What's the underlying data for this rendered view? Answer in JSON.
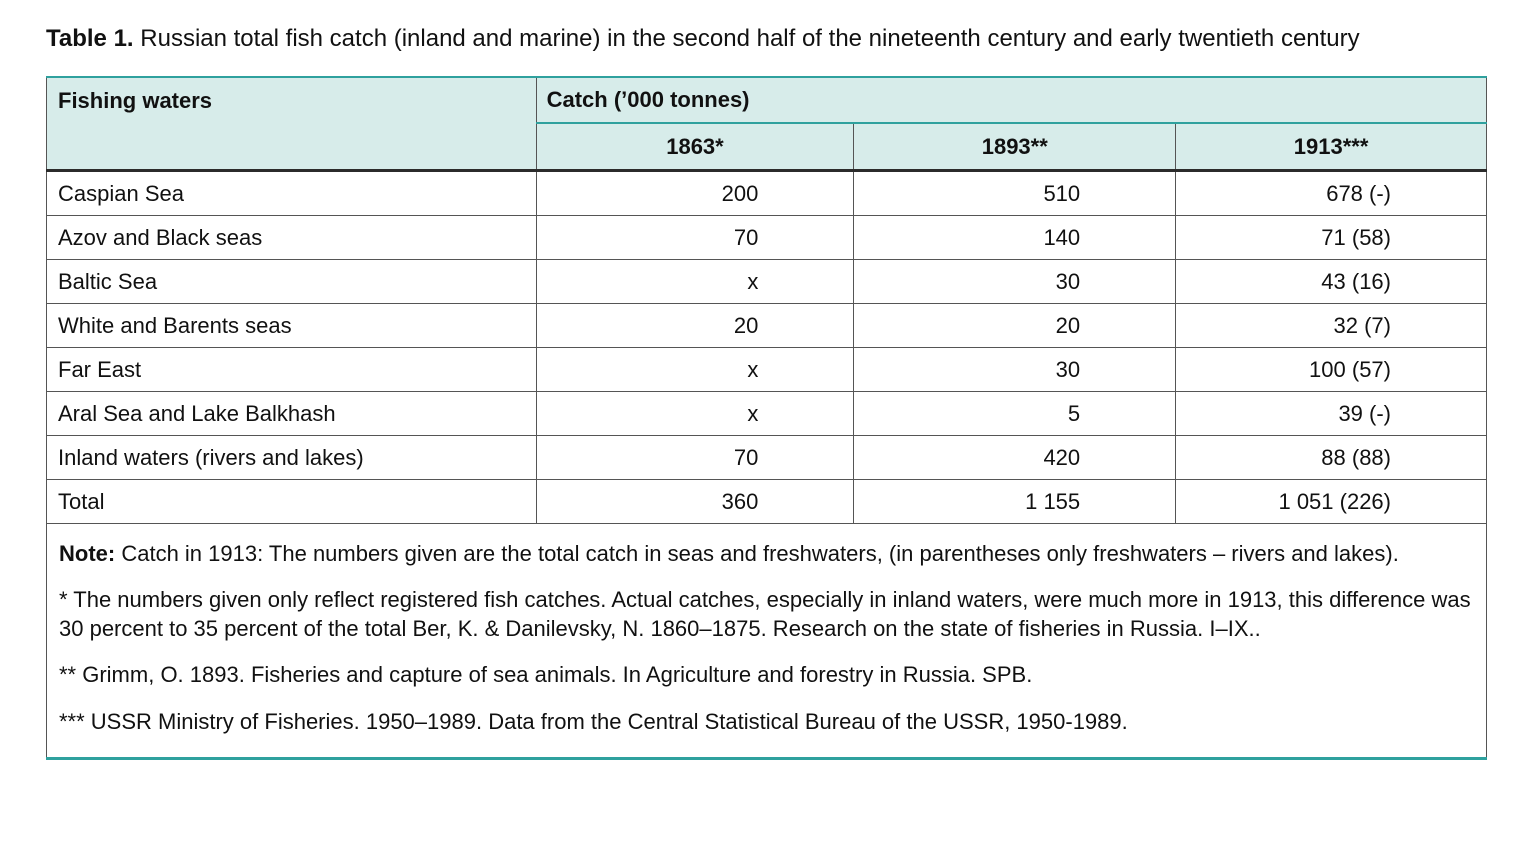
{
  "caption": {
    "label": "Table 1.",
    "text": " Russian total fish catch (inland and marine) in the second half of the nineteenth century and early twentieth century"
  },
  "table": {
    "col_header": "Fishing waters",
    "group_header": "Catch (’000 tonnes)",
    "year_headers": [
      "1863*",
      "1893**",
      "1913***"
    ],
    "rows": [
      {
        "label": "Caspian Sea",
        "values": [
          "200",
          "510",
          "678 (-)"
        ]
      },
      {
        "label": "Azov and Black seas",
        "values": [
          "70",
          "140",
          "71 (58)"
        ]
      },
      {
        "label": "Baltic Sea",
        "values": [
          "x",
          "30",
          "43 (16)"
        ]
      },
      {
        "label": "White and Barents seas",
        "values": [
          "20",
          "20",
          "32 (7)"
        ]
      },
      {
        "label": "Far East",
        "values": [
          "x",
          "30",
          "100 (57)"
        ]
      },
      {
        "label": "Aral Sea and Lake Balkhash",
        "values": [
          "x",
          "5",
          "39 (-)"
        ]
      },
      {
        "label": "Inland waters (rivers and lakes)",
        "values": [
          "70",
          "420",
          "88 (88)"
        ]
      },
      {
        "label": "Total",
        "values": [
          "360",
          "1 155",
          "1 051 (226)"
        ]
      }
    ]
  },
  "notes": [
    {
      "lead": "Note:",
      "text": " Catch in 1913: The numbers given are the total catch in seas and freshwaters, (in parentheses only freshwaters – rivers and lakes)."
    },
    {
      "lead": "",
      "text": "* The numbers given only reflect registered fish catches. Actual catches, especially in inland waters, were much more in 1913, this difference was 30 percent to 35 percent of the total Ber, K. & Danilevsky, N. 1860–1875. Research on the state of fisheries in Russia. I–IX.."
    },
    {
      "lead": "",
      "text": "** Grimm, O. 1893. Fisheries and capture of sea animals. In Agriculture and forestry in Russia. SPB."
    },
    {
      "lead": "",
      "text": "*** USSR Ministry of Fisheries. 1950–1989. Data from the Central Statistical Bureau of the USSR, 1950-1989."
    }
  ],
  "colors": {
    "header_bg": "#d7ecea",
    "teal_rule": "#2fa19e",
    "dark_rule": "#2b2b2b",
    "grid_line": "#555555",
    "text": "#111111"
  },
  "chart_data": {
    "type": "table",
    "title": "Table 1. Russian total fish catch (inland and marine) in the second half of the nineteenth century and early twentieth century",
    "columns": [
      "Fishing waters",
      "1863*",
      "1893**",
      "1913***"
    ],
    "unit": "Catch ('000 tonnes)",
    "rows": [
      [
        "Caspian Sea",
        "200",
        "510",
        "678 (-)"
      ],
      [
        "Azov and Black seas",
        "70",
        "140",
        "71 (58)"
      ],
      [
        "Baltic Sea",
        "x",
        "30",
        "43 (16)"
      ],
      [
        "White and Barents seas",
        "20",
        "20",
        "32 (7)"
      ],
      [
        "Far East",
        "x",
        "30",
        "100 (57)"
      ],
      [
        "Aral Sea and Lake Balkhash",
        "x",
        "5",
        "39 (-)"
      ],
      [
        "Inland waters (rivers and lakes)",
        "70",
        "420",
        "88 (88)"
      ],
      [
        "Total",
        "360",
        "1 155",
        "1 051 (226)"
      ]
    ]
  }
}
